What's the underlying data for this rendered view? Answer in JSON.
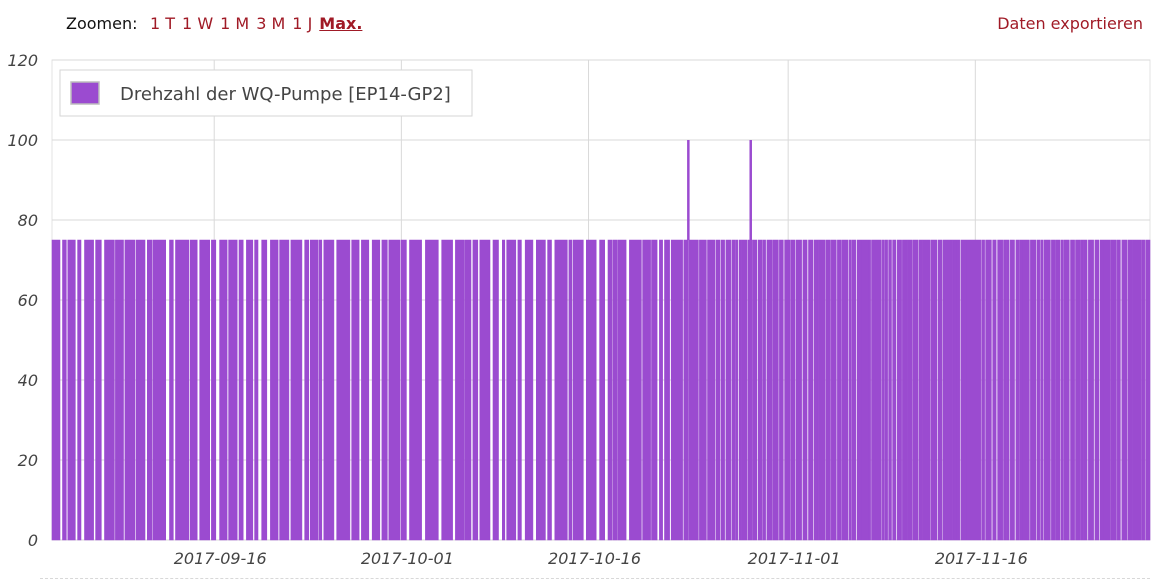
{
  "toolbar": {
    "zoom_label": "Zoomen:",
    "zoom_options": [
      "1 T",
      "1 W",
      "1 M",
      "3 M",
      "1 J",
      "Max."
    ],
    "active_zoom": "Max.",
    "export_label": "Daten exportieren"
  },
  "colors": {
    "series": "#9b4bd0",
    "accent": "#a01a26",
    "grid": "#d9d9d9"
  },
  "chart_data": {
    "type": "line",
    "title": "",
    "xlabel": "",
    "ylabel": "",
    "xlim": [
      "2017-09-03",
      "2017-11-30"
    ],
    "ylim": [
      0,
      120
    ],
    "yticks": [
      0,
      20,
      40,
      60,
      80,
      100,
      120
    ],
    "xticks": [
      "2017-09-16",
      "2017-10-01",
      "2017-10-16",
      "2017-11-01",
      "2017-11-16"
    ],
    "grid": true,
    "legend_position": "top-left",
    "series": [
      {
        "name": "Drehzahl der WQ-Pumpe [EP14-GP2]",
        "color": "#9b4bd0",
        "segments": [
          {
            "from": "2017-09-03",
            "to": "2017-10-26",
            "value": 75,
            "pattern": "frequent drops to 0"
          },
          {
            "from": "2017-10-26",
            "to": "2017-11-30",
            "value": 75,
            "pattern": "dense switching"
          }
        ],
        "peaks": [
          {
            "x": "2017-10-24",
            "y": 100
          },
          {
            "x": "2017-10-29",
            "y": 100
          }
        ],
        "baseline_value": 75,
        "off_value": 0
      }
    ]
  }
}
